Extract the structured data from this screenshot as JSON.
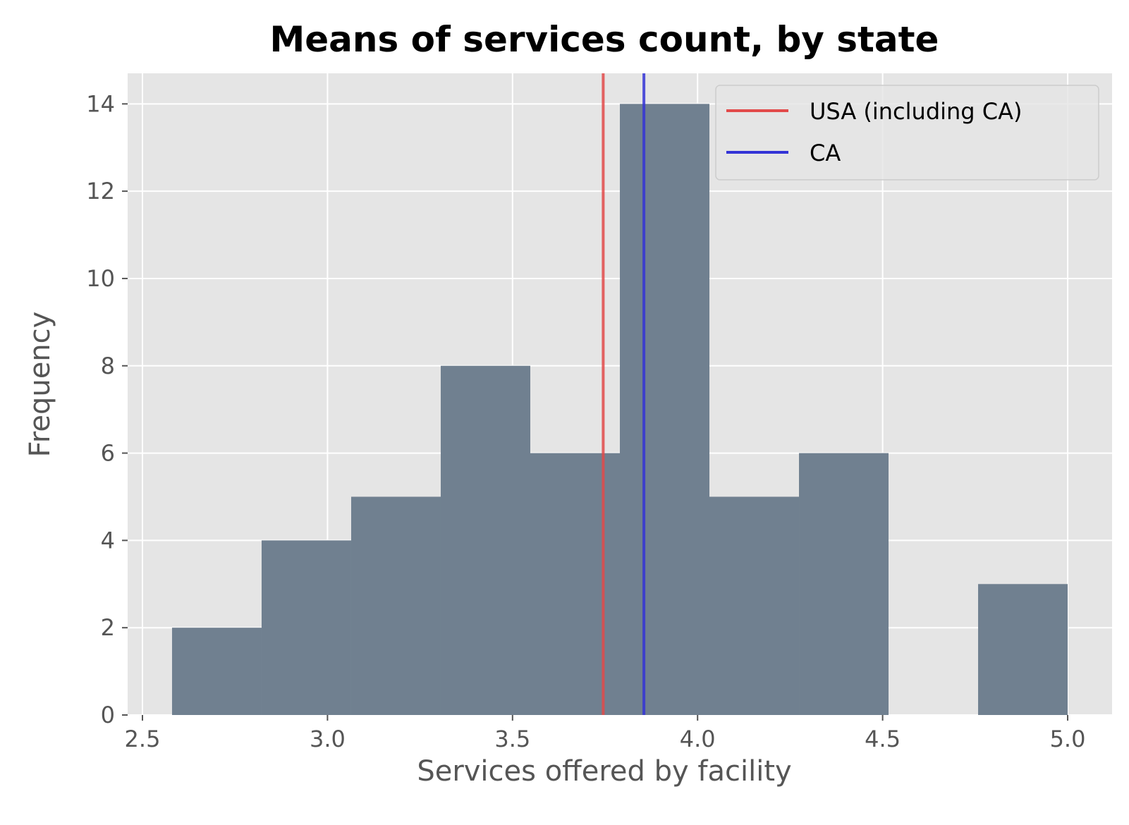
{
  "chart_data": {
    "type": "bar",
    "title": "Means of services count, by state",
    "xlabel": "Services offered by facility",
    "ylabel": "Frequency",
    "xlim": [
      2.46,
      5.12
    ],
    "ylim": [
      0,
      14.7
    ],
    "xticks": [
      2.5,
      3.0,
      3.5,
      4.0,
      4.5,
      5.0
    ],
    "xtick_labels": [
      "2.5",
      "3.0",
      "3.5",
      "4.0",
      "4.5",
      "5.0"
    ],
    "yticks": [
      0,
      2,
      4,
      6,
      8,
      10,
      12,
      14
    ],
    "ytick_labels": [
      "0",
      "2",
      "4",
      "6",
      "8",
      "10",
      "12",
      "14"
    ],
    "grid": true,
    "bin_edges": [
      2.58,
      2.822,
      3.064,
      3.306,
      3.548,
      3.79,
      4.032,
      4.274,
      4.516,
      4.758,
      5.0
    ],
    "counts": [
      2,
      4,
      5,
      8,
      6,
      14,
      5,
      6,
      0,
      3
    ],
    "vlines": [
      {
        "name": "USA (including CA)",
        "x": 3.745,
        "color": "#e24a4a"
      },
      {
        "name": "CA",
        "x": 3.855,
        "color": "#3434d6"
      }
    ],
    "legend_placement": "upper right",
    "bar_color": "#708090",
    "background_color": "#e5e5e5"
  }
}
